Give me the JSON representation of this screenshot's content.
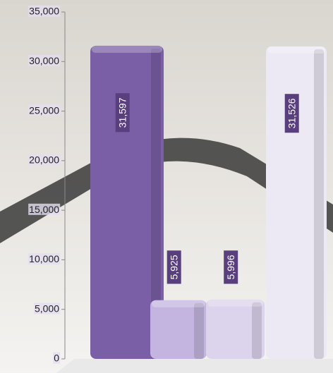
{
  "chart_data": {
    "type": "bar",
    "values": [
      31597,
      5925,
      5996,
      31526
    ],
    "value_labels": [
      "31,597",
      "5,925",
      "5,996",
      "31,526"
    ],
    "colors": [
      "#7a5fa6",
      "#c3b5df",
      "#dcd3ec",
      "#ece8f4"
    ],
    "label_color": "#5a3f7f",
    "ylim": [
      0,
      35000
    ],
    "yticks": [
      0,
      {
        "value": 5000,
        "label": "5,000"
      },
      {
        "value": 10000,
        "label": "10,000"
      },
      {
        "value": 15000,
        "label": "15,000"
      },
      {
        "value": 20000,
        "label": "20,000"
      },
      {
        "value": 25000,
        "label": "25,000"
      },
      {
        "value": 30000,
        "label": "30,000"
      },
      {
        "value": 35000,
        "label": "35,000"
      }
    ]
  }
}
